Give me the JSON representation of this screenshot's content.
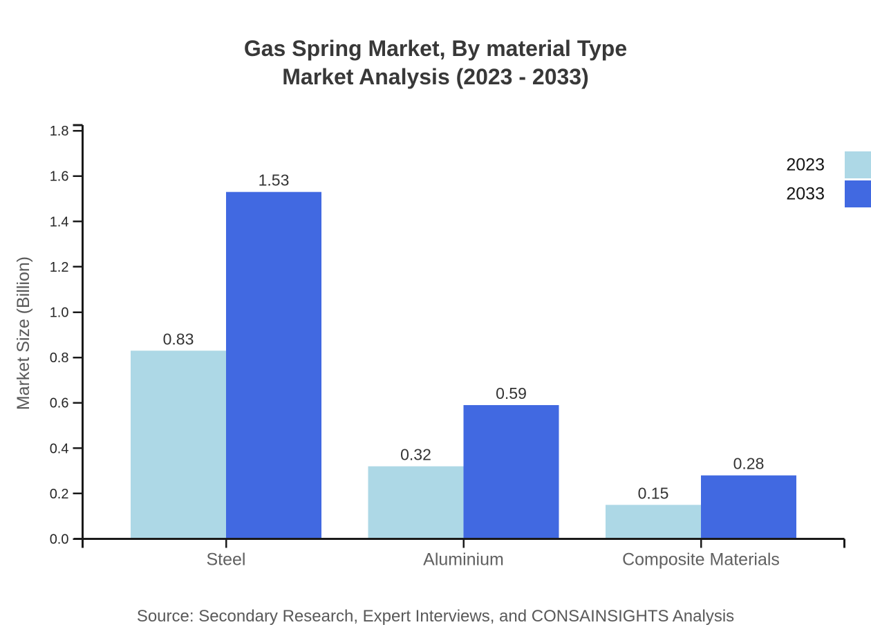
{
  "title": {
    "line1": "Gas Spring Market, By material Type",
    "line2": "Market Analysis (2023 - 2033)"
  },
  "chart_data": {
    "type": "bar",
    "categories": [
      "Steel",
      "Aluminium",
      "Composite Materials"
    ],
    "series": [
      {
        "name": "2023",
        "color": "#add8e6",
        "values": [
          0.83,
          0.32,
          0.15
        ]
      },
      {
        "name": "2033",
        "color": "#4169e1",
        "values": [
          1.53,
          0.59,
          0.28
        ]
      }
    ],
    "bar_value_labels": [
      [
        "0.83",
        "0.32",
        "0.15"
      ],
      [
        "1.53",
        "0.59",
        "0.28"
      ]
    ],
    "xlabel": "",
    "ylabel": "Market Size (Billion)",
    "ylim": [
      0.0,
      1.8
    ],
    "yticks": [
      "0.0",
      "0.2",
      "0.4",
      "0.6",
      "0.8",
      "1.0",
      "1.2",
      "1.4",
      "1.6",
      "1.8"
    ],
    "grid": false,
    "legend_position": "top-right",
    "legend": [
      {
        "label": "2023",
        "color": "#add8e6"
      },
      {
        "label": "2033",
        "color": "#4169e1"
      }
    ]
  },
  "colors": {
    "axis": "#1a1a1a",
    "tick_label": "#262626",
    "category_label": "#606060",
    "value_label": "#333333",
    "legend_label": "#141414",
    "title": "#383838",
    "muted": "#595959"
  },
  "source": "Source: Secondary Research, Expert Interviews, and CONSAINSIGHTS Analysis"
}
